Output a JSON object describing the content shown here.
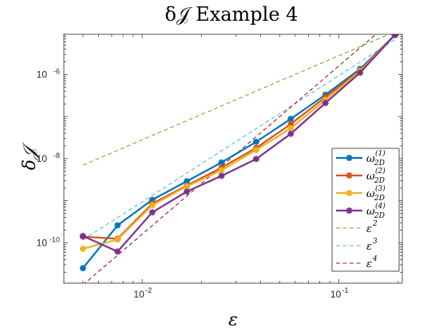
{
  "chart_data": {
    "type": "line",
    "title": "δ𝒥 Example 4",
    "xlabel": "ε",
    "ylabel": "δ𝒥",
    "xscale": "log",
    "yscale": "log",
    "xlim": [
      0.004,
      0.21
    ],
    "ylim": [
      1.1e-11,
      9e-06
    ],
    "xticks": [
      {
        "value": 0.01,
        "base": "10",
        "exp": "-2"
      },
      {
        "value": 0.1,
        "base": "10",
        "exp": "-1"
      }
    ],
    "yticks": [
      {
        "value": 1e-10,
        "base": "10",
        "exp": "-10"
      },
      {
        "value": 1e-08,
        "base": "10",
        "exp": "-8"
      },
      {
        "value": 1e-06,
        "base": "10",
        "exp": "-6"
      }
    ],
    "grid": false,
    "legend_position": "bottom-right",
    "x": [
      0.005,
      0.0075,
      0.01125,
      0.016875,
      0.02531,
      0.03797,
      0.05695,
      0.08543,
      0.1281,
      0.1922
    ],
    "series": [
      {
        "name": "ω",
        "sub": "2D",
        "sup": "(1)",
        "color": "#0072BD",
        "style": "solid",
        "marker": true,
        "values": [
          2.5e-11,
          2.6e-10,
          1.05e-09,
          2.9e-09,
          8.1e-09,
          2.5e-08,
          8.8e-08,
          3.3e-07,
          1.35e-06,
          8.6e-06
        ]
      },
      {
        "name": "ω",
        "sub": "2D",
        "sup": "(2)",
        "color": "#D95319",
        "style": "solid",
        "marker": true,
        "values": [
          1.4e-10,
          1.25e-10,
          8.5e-10,
          2.3e-09,
          6.1e-09,
          1.8e-08,
          6.6e-08,
          2.9e-07,
          1.25e-06,
          8.6e-06
        ]
      },
      {
        "name": "ω",
        "sub": "2D",
        "sup": "(3)",
        "color": "#EDB120",
        "style": "solid",
        "marker": true,
        "values": [
          7.2e-11,
          1.2e-10,
          7.8e-10,
          2.2e-09,
          5.3e-09,
          1.6e-08,
          5.3e-08,
          2.5e-07,
          1.2e-06,
          8.6e-06
        ]
      },
      {
        "name": "ω",
        "sub": "2D",
        "sup": "(4)",
        "color": "#7E2F8E",
        "style": "solid",
        "marker": true,
        "values": [
          1.45e-10,
          6.2e-11,
          5.3e-10,
          1.65e-09,
          3.9e-09,
          9.8e-09,
          3.9e-08,
          2.1e-07,
          1.1e-06,
          8.6e-06
        ]
      },
      {
        "name": "ε",
        "sup": "2",
        "color": "#77AC30",
        "style": "dashed",
        "marker": false,
        "values": [
          7e-09,
          1.575e-08,
          3.54e-08,
          7.97e-08,
          1.79e-07,
          4.03e-07,
          9.08e-07,
          2.04e-06,
          4.59e-06,
          1.033e-05
        ]
      },
      {
        "name": "ε",
        "sup": "3",
        "color": "#4DBEEE",
        "style": "dashed",
        "marker": false,
        "values": [
          1.18e-10,
          3.98e-10,
          1.34e-09,
          4.53e-09,
          1.53e-08,
          5.15e-08,
          1.74e-07,
          5.87e-07,
          1.98e-06,
          6.69e-06
        ]
      },
      {
        "name": "ε",
        "sup": "4",
        "color": "#A2142F",
        "style": "dashed",
        "marker": false,
        "values": [
          1e-11,
          5.06e-11,
          2.56e-10,
          1.3e-09,
          6.56e-09,
          3.32e-08,
          1.68e-07,
          8.52e-07,
          4.31e-06,
          2.18e-05
        ]
      }
    ]
  }
}
